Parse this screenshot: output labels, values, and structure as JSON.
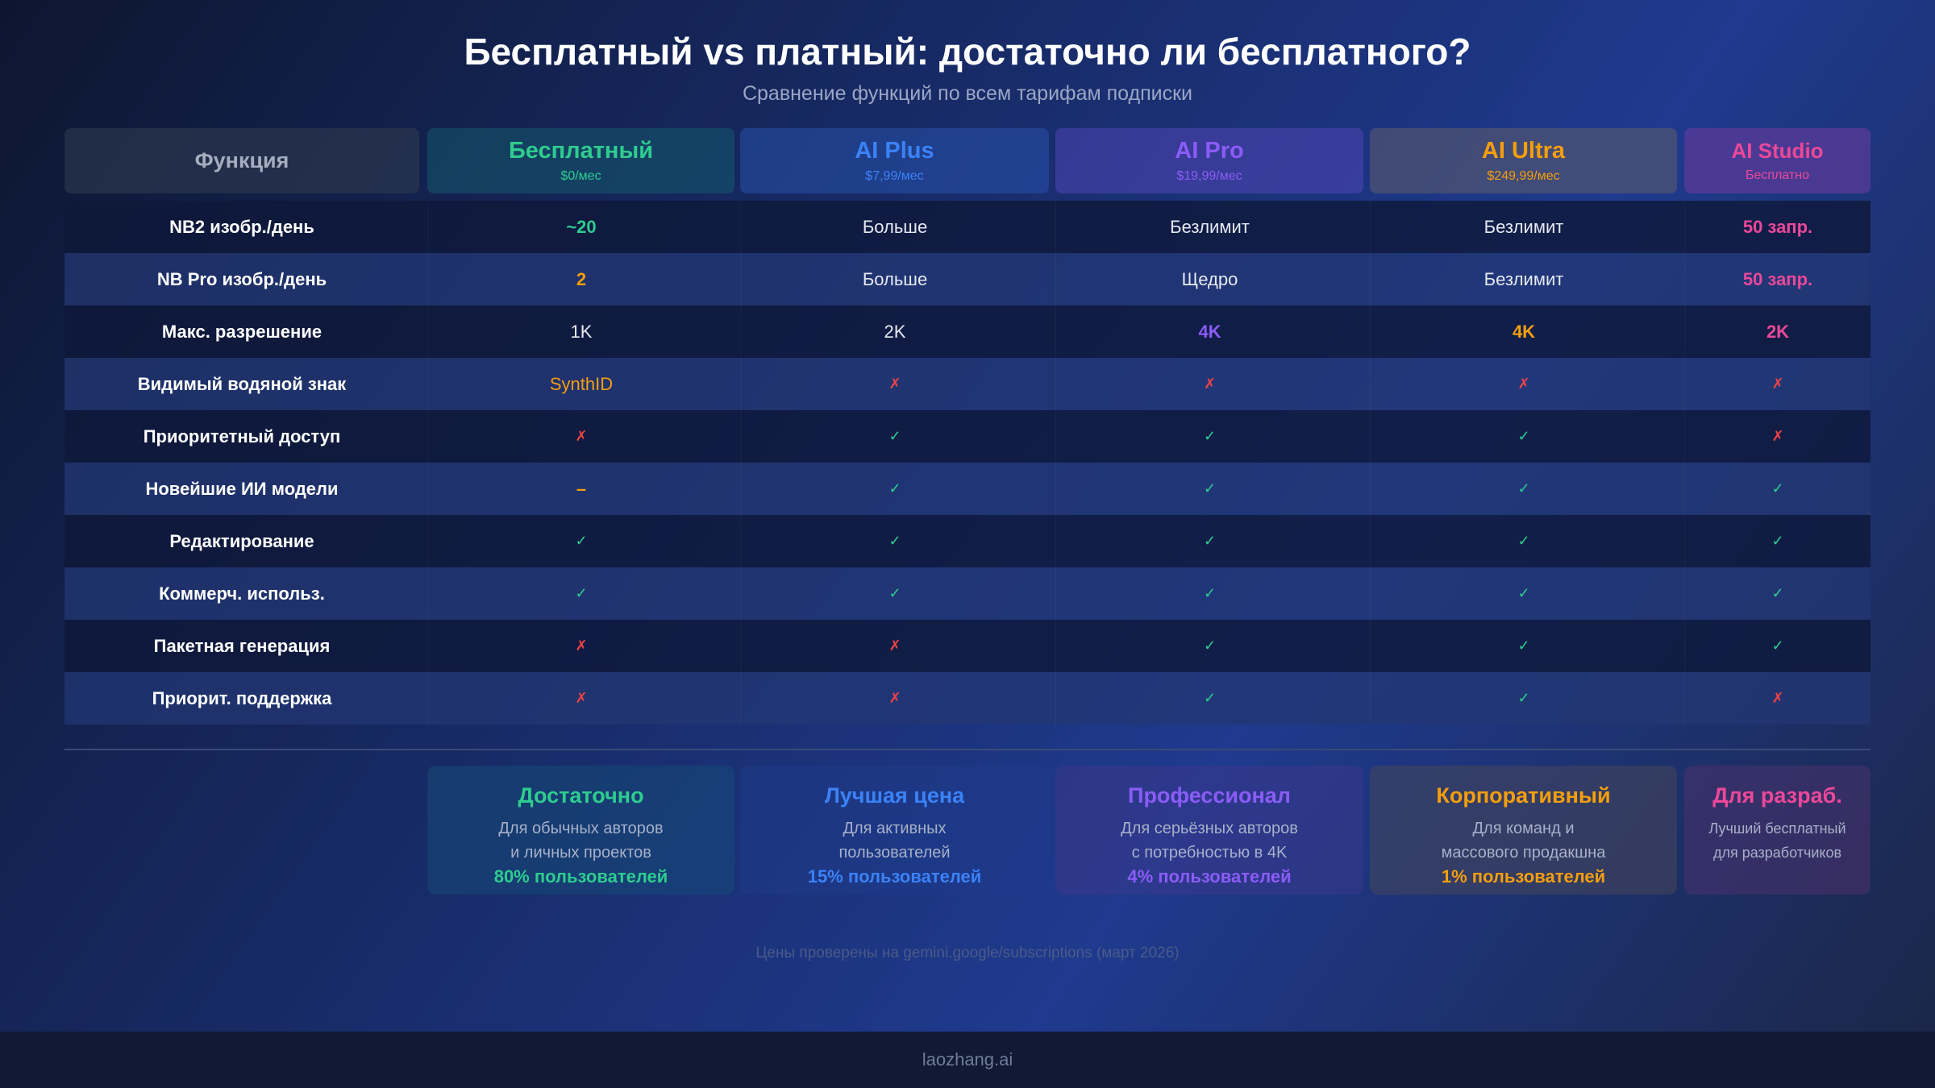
{
  "header": {
    "title": "Бесплатный vs платный: достаточно ли бесплатного?",
    "subtitle": "Сравнение функций по всем тарифам подписки"
  },
  "table": {
    "header_label": "Функция",
    "plans": [
      {
        "name": "Бесплатный",
        "price": "$0/мес"
      },
      {
        "name": "AI Plus",
        "price": "$7,99/мес"
      },
      {
        "name": "AI Pro",
        "price": "$19,99/мес"
      },
      {
        "name": "AI Ultra",
        "price": "$249,99/мес"
      },
      {
        "name": "AI Studio",
        "price": "Бесплатно"
      }
    ],
    "rows": [
      {
        "feature": "NB2 изобр./день",
        "cells": [
          "~20",
          "Больше",
          "Безлимит",
          "Безлимит",
          "50 запр."
        ]
      },
      {
        "feature": "NB Pro изобр./день",
        "cells": [
          "2",
          "Больше",
          "Щедро",
          "Безлимит",
          "50 запр."
        ]
      },
      {
        "feature": "Макс. разрешение",
        "cells": [
          "1K",
          "2K",
          "4K",
          "4K",
          "2K"
        ]
      },
      {
        "feature": "Видимый водяной знак",
        "cells": [
          "SynthID",
          "✗",
          "✗",
          "✗",
          "✗"
        ]
      },
      {
        "feature": "Приоритетный доступ",
        "cells": [
          "✗",
          "✓",
          "✓",
          "✓",
          "✗"
        ]
      },
      {
        "feature": "Новейшие ИИ модели",
        "cells": [
          "–",
          "✓",
          "✓",
          "✓",
          "✓"
        ]
      },
      {
        "feature": "Редактирование",
        "cells": [
          "✓",
          "✓",
          "✓",
          "✓",
          "✓"
        ]
      },
      {
        "feature": "Коммерч. использ.",
        "cells": [
          "✓",
          "✓",
          "✓",
          "✓",
          "✓"
        ]
      },
      {
        "feature": "Пакетная генерация",
        "cells": [
          "✗",
          "✗",
          "✓",
          "✓",
          "✓"
        ]
      },
      {
        "feature": "Приорит. поддержка",
        "cells": [
          "✗",
          "✗",
          "✓",
          "✓",
          "✗"
        ]
      }
    ]
  },
  "cards": [
    {
      "title": "Достаточно",
      "lines": [
        "Для обычных авторов",
        "и личных проектов"
      ],
      "share": "80% пользователей"
    },
    {
      "title": "Лучшая цена",
      "lines": [
        "Для активных",
        "пользователей"
      ],
      "share": "15% пользователей"
    },
    {
      "title": "Профессионал",
      "lines": [
        "Для серьёзных авторов",
        "с потребностью в 4K"
      ],
      "share": "4% пользователей"
    },
    {
      "title": "Корпоративный",
      "lines": [
        "Для команд и",
        "массового продакшна"
      ],
      "share": "1% пользователей"
    },
    {
      "title": "Для разраб.",
      "lines": [
        "Лучший бесплатный",
        "для разработчиков"
      ]
    }
  ],
  "footnote": "Цены проверены на gemini.google/subscriptions (март 2026)",
  "footer": "laozhang.ai"
}
